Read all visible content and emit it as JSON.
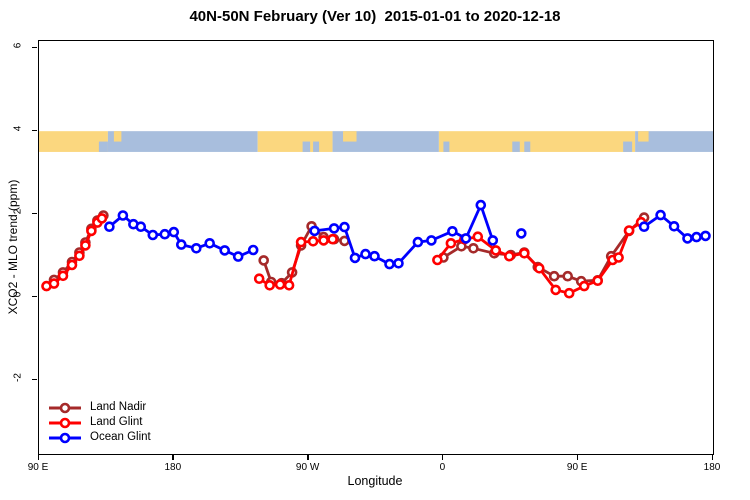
{
  "chart_data": {
    "type": "line",
    "title": "40N-50N February (Ver 10)  2015-01-01 to 2020-12-18",
    "xlabel": "Longitude",
    "ylabel": "XCO2 - MLO trend (ppm)",
    "grid": false,
    "legend_position": "bottom-left",
    "x_axis": {
      "note": "longitude axis starting at 90E wrapping eastward; positions in degrees from left edge",
      "range_deg": [
        0,
        450
      ],
      "ticks_deg": [
        0,
        90,
        180,
        270,
        360,
        450
      ],
      "tick_labels": [
        "90 E",
        "180",
        "90 W",
        "0",
        "90 E",
        "180"
      ]
    },
    "y_axis": {
      "range": [
        -3.77,
        6.17
      ],
      "ticks": [
        -2,
        0,
        2,
        4,
        6
      ]
    },
    "map_band": {
      "description": "world coastline strip for 40N-50N latitude band",
      "value_range": [
        3.5,
        4.0
      ],
      "land_color": "#FBD77F",
      "ocean_color": "#A8BEDD",
      "segments": [
        {
          "from": 0,
          "to": 46,
          "type": "land"
        },
        {
          "from": 46,
          "to": 146,
          "type": "ocean"
        },
        {
          "from": 146,
          "to": 196,
          "type": "land"
        },
        {
          "from": 196,
          "to": 267,
          "type": "ocean"
        },
        {
          "from": 267,
          "to": 398,
          "type": "land"
        },
        {
          "from": 398,
          "to": 450,
          "type": "ocean"
        }
      ],
      "details": [
        {
          "from": 40,
          "to": 46,
          "part": "bottom",
          "type": "ocean"
        },
        {
          "from": 50,
          "to": 55,
          "part": "top",
          "type": "land"
        },
        {
          "from": 176,
          "to": 181,
          "part": "bottom",
          "type": "ocean"
        },
        {
          "from": 183,
          "to": 187,
          "part": "bottom",
          "type": "ocean"
        },
        {
          "from": 203,
          "to": 212,
          "part": "top",
          "type": "land"
        },
        {
          "from": 270,
          "to": 274,
          "part": "bottom",
          "type": "ocean"
        },
        {
          "from": 316,
          "to": 321,
          "part": "bottom",
          "type": "ocean"
        },
        {
          "from": 324,
          "to": 328,
          "part": "bottom",
          "type": "ocean"
        },
        {
          "from": 390,
          "to": 396,
          "part": "bottom",
          "type": "ocean"
        },
        {
          "from": 400,
          "to": 407,
          "part": "top",
          "type": "land"
        }
      ]
    },
    "series": [
      {
        "name": "Land Nadir",
        "color": "#A52A2A",
        "segments": [
          [
            [
              10,
              0.42
            ],
            [
              16,
              0.6
            ],
            [
              22,
              0.85
            ],
            [
              27,
              1.08
            ],
            [
              31,
              1.32
            ],
            [
              35,
              1.65
            ],
            [
              39,
              1.85
            ],
            [
              43,
              1.97
            ]
          ],
          [
            [
              150,
              0.89
            ],
            [
              155,
              0.37
            ],
            [
              162,
              0.34
            ],
            [
              169,
              0.6
            ],
            [
              175,
              1.25
            ],
            [
              182,
              1.71
            ],
            [
              190,
              1.45
            ],
            [
              197,
              1.4
            ],
            [
              204,
              1.36
            ]
          ],
          [
            [
              270,
              0.96
            ],
            [
              282,
              1.23
            ],
            [
              290,
              1.18
            ],
            [
              304,
              1.06
            ],
            [
              315,
              1.02
            ],
            [
              324,
              1.08
            ],
            [
              333,
              0.73
            ],
            [
              344,
              0.51
            ],
            [
              353,
              0.51
            ],
            [
              362,
              0.39
            ],
            [
              373,
              0.41
            ],
            [
              382,
              0.99
            ],
            [
              394,
              1.6
            ],
            [
              404,
              1.92
            ]
          ]
        ]
      },
      {
        "name": "Land Glint",
        "color": "#FF0000",
        "segments": [
          [
            [
              5,
              0.27
            ],
            [
              10,
              0.33
            ],
            [
              16,
              0.52
            ],
            [
              22,
              0.78
            ],
            [
              27,
              1.0
            ],
            [
              31,
              1.25
            ],
            [
              35,
              1.6
            ],
            [
              39,
              1.8
            ],
            [
              42,
              1.9
            ]
          ],
          [
            [
              147,
              0.45
            ],
            [
              154,
              0.29
            ],
            [
              161,
              0.31
            ],
            [
              167,
              0.29
            ],
            [
              175,
              1.33
            ],
            [
              183,
              1.35
            ],
            [
              190,
              1.37
            ],
            [
              196,
              1.4
            ]
          ],
          [
            [
              266,
              0.9
            ],
            [
              275,
              1.3
            ],
            [
              284,
              1.4
            ],
            [
              293,
              1.46
            ],
            [
              305,
              1.13
            ],
            [
              314,
              0.99
            ],
            [
              324,
              1.06
            ],
            [
              334,
              0.7
            ],
            [
              345,
              0.18
            ],
            [
              354,
              0.1
            ],
            [
              364,
              0.27
            ],
            [
              373,
              0.4
            ],
            [
              383,
              0.9
            ],
            [
              387,
              0.96
            ],
            [
              394,
              1.61
            ],
            [
              402,
              1.81
            ]
          ]
        ]
      },
      {
        "name": "Ocean Glint",
        "color": "#0000FF",
        "segments": [
          [
            [
              47,
              1.7
            ],
            [
              56,
              1.97
            ],
            [
              63,
              1.76
            ],
            [
              68,
              1.7
            ],
            [
              76,
              1.5
            ],
            [
              84,
              1.52
            ],
            [
              90,
              1.57
            ],
            [
              95,
              1.27
            ],
            [
              105,
              1.18
            ],
            [
              114,
              1.3
            ],
            [
              124,
              1.13
            ],
            [
              133,
              0.98
            ],
            [
              143,
              1.14
            ]
          ],
          [
            [
              184,
              1.6
            ],
            [
              197,
              1.66
            ],
            [
              204,
              1.69
            ],
            [
              211,
              0.95
            ],
            [
              218,
              1.04
            ],
            [
              224,
              0.99
            ],
            [
              234,
              0.8
            ],
            [
              240,
              0.82
            ],
            [
              253,
              1.33
            ],
            [
              262,
              1.37
            ],
            [
              276,
              1.59
            ],
            [
              285,
              1.42
            ],
            [
              295,
              2.22
            ],
            [
              303,
              1.37
            ]
          ],
          [
            [
              322,
              1.54
            ]
          ],
          [
            [
              404,
              1.7
            ],
            [
              415,
              1.98
            ],
            [
              424,
              1.71
            ],
            [
              433,
              1.42
            ],
            [
              439,
              1.45
            ],
            [
              445,
              1.48
            ]
          ]
        ]
      }
    ]
  }
}
